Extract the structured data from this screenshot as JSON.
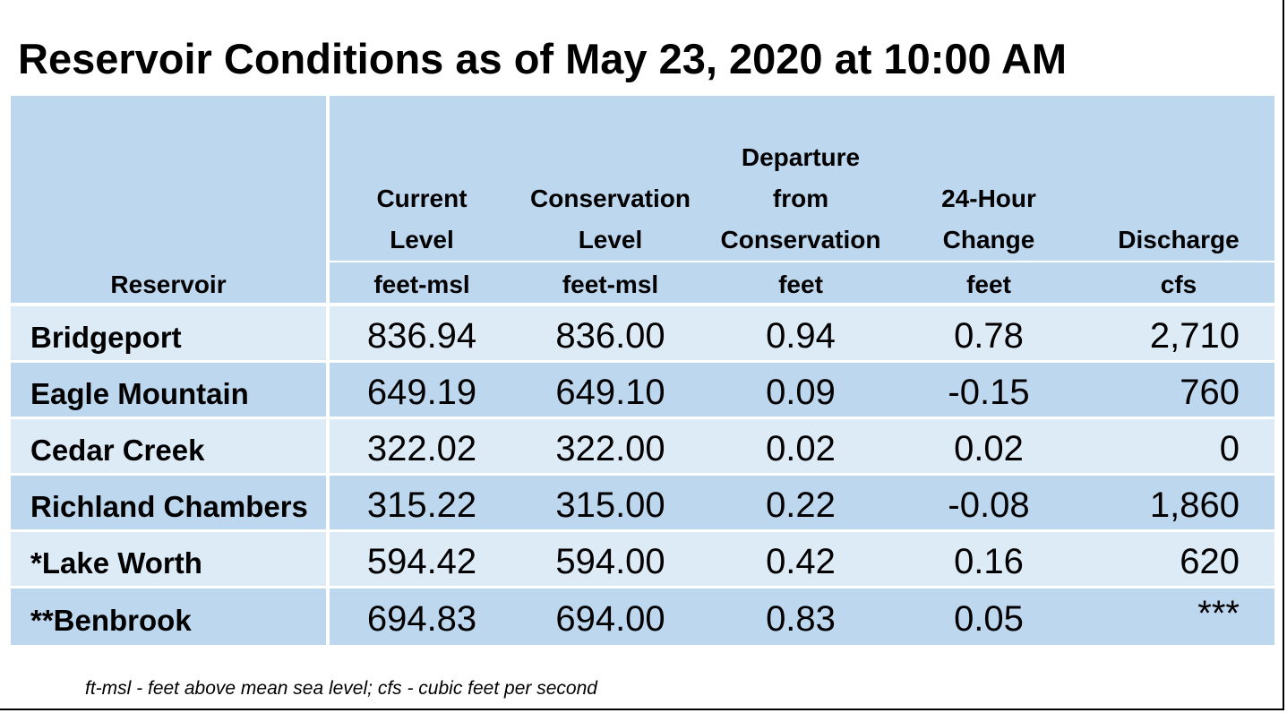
{
  "title": "Reservoir Conditions as of May 23, 2020 at 10:00 AM",
  "header": {
    "reservoir": "Reservoir",
    "current_level": [
      "Current",
      "Level"
    ],
    "conservation_level": [
      "Conservation",
      "Level"
    ],
    "departure": [
      "Departure",
      "from",
      "Conservation"
    ],
    "change_24h": [
      "24-Hour",
      "Change"
    ],
    "discharge": [
      "Discharge"
    ]
  },
  "units": [
    "feet-msl",
    "feet-msl",
    "feet",
    "feet",
    "cfs"
  ],
  "rows": [
    {
      "name": "Bridgeport",
      "current": "836.94",
      "conservation": "836.00",
      "departure": "0.94",
      "change": "0.78",
      "discharge": "2,710"
    },
    {
      "name": "Eagle Mountain",
      "current": "649.19",
      "conservation": "649.10",
      "departure": "0.09",
      "change": "-0.15",
      "discharge": "760"
    },
    {
      "name": "Cedar Creek",
      "current": "322.02",
      "conservation": "322.00",
      "departure": "0.02",
      "change": "0.02",
      "discharge": "0"
    },
    {
      "name": "Richland Chambers",
      "current": "315.22",
      "conservation": "315.00",
      "departure": "0.22",
      "change": "-0.08",
      "discharge": "1,860"
    },
    {
      "name": "*Lake Worth",
      "current": "594.42",
      "conservation": "594.00",
      "departure": "0.42",
      "change": "0.16",
      "discharge": "620"
    },
    {
      "name": "**Benbrook",
      "current": "694.83",
      "conservation": "694.00",
      "departure": "0.83",
      "change": "0.05",
      "discharge": "***"
    }
  ],
  "footnote": "ft-msl - feet above mean sea level; cfs - cubic feet per second"
}
